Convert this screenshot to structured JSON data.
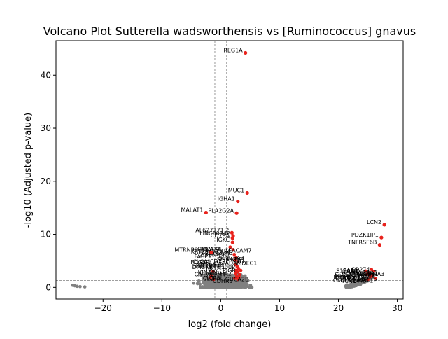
{
  "chart_data": {
    "type": "scatter",
    "title": "Volcano Plot Sutterella wadsworthensis vs [Ruminococcus] gnavus",
    "xlabel": "log2 (fold change)",
    "ylabel": "-log10 (Adjusted p-value)",
    "xlim": [
      -28,
      31
    ],
    "ylim": [
      -2.2,
      46.5
    ],
    "xticks": [
      -20,
      -10,
      0,
      10,
      20,
      30
    ],
    "yticks": [
      0,
      10,
      20,
      30,
      40
    ],
    "grid": false,
    "legend": "none",
    "threshold_lines": {
      "vertical": [
        -1,
        1
      ],
      "horizontal": 1.3
    },
    "colors": {
      "significant": "#e8221c",
      "not_significant": "#808080",
      "threshold": "#808080",
      "axis": "#000000"
    },
    "labeled_points": [
      {
        "label": "REG1A",
        "x": 4.2,
        "y": 44.2
      },
      {
        "label": "MUC1",
        "x": 4.5,
        "y": 17.8
      },
      {
        "label": "IGHA1",
        "x": 2.9,
        "y": 16.2
      },
      {
        "label": "MALAT1",
        "x": -2.5,
        "y": 14.1
      },
      {
        "label": "PLA2G2A",
        "x": 2.7,
        "y": 14.0
      },
      {
        "label": "AL627171.2",
        "x": 1.9,
        "y": 10.3
      },
      {
        "label": "LINC00342",
        "x": 2.1,
        "y": 9.7
      },
      {
        "label": "CD79A",
        "x": 2.0,
        "y": 9.3
      },
      {
        "label": "IGKC",
        "x": 2.0,
        "y": 8.5
      },
      {
        "label": "MTRNR2L12",
        "x": -1.6,
        "y": 6.6
      },
      {
        "label": "LCN2",
        "x": 27.8,
        "y": 11.8
      },
      {
        "label": "PDZK1IP1",
        "x": 27.3,
        "y": 9.4
      },
      {
        "label": "TNFRSF6B",
        "x": 27.0,
        "y": 8.0
      }
    ],
    "significant_points": [
      [
        2.3,
        6.2
      ],
      [
        2.6,
        5.6
      ],
      [
        2.4,
        5.1
      ],
      [
        2.9,
        4.8
      ],
      [
        2.5,
        4.3
      ],
      [
        2.8,
        3.9
      ],
      [
        3.0,
        3.6
      ],
      [
        2.6,
        3.2
      ],
      [
        3.4,
        3.2
      ],
      [
        2.9,
        2.9
      ],
      [
        2.5,
        2.6
      ],
      [
        3.2,
        2.4
      ],
      [
        2.7,
        2.1
      ],
      [
        3.1,
        1.9
      ],
      [
        2.4,
        1.7
      ],
      [
        2.9,
        1.5
      ],
      [
        -1.3,
        3.0
      ],
      [
        -1.6,
        2.2
      ],
      [
        -1.8,
        1.8
      ],
      [
        -1.2,
        1.5
      ],
      [
        1.6,
        7.6
      ],
      [
        2.1,
        7.1
      ],
      [
        25.6,
        3.4
      ],
      [
        26.0,
        3.0
      ],
      [
        25.2,
        2.7
      ],
      [
        25.8,
        2.3
      ],
      [
        25.4,
        2.0
      ],
      [
        26.3,
        1.7
      ],
      [
        25.0,
        1.5
      ],
      [
        24.6,
        3.1
      ],
      [
        24.9,
        2.5
      ]
    ],
    "annotation_labels": [
      "ADAMDEC1",
      "SPINK4",
      "FCGBP",
      "ITLN1",
      "TFF3",
      "CLCA1",
      "ZG16",
      "CEACAM5",
      "OLFM4",
      "LYZ",
      "S100P",
      "DMBT1",
      "PIGR",
      "AGR2",
      "IGHA2",
      "IGHM",
      "JCHAIN",
      "MZB1",
      "PHGR1",
      "KRT20",
      "SELENBP1",
      "FABP1",
      "CA1",
      "CA2",
      "GUCA2A",
      "GUCA2B",
      "AQP8",
      "SLC26A3",
      "CEACAM7",
      "MS4A12",
      "CLDN8",
      "CDHR5",
      "SATB2",
      "LGALS4",
      "CDX2",
      "DUOX2",
      "DUOXA2",
      "NOS2",
      "SAA1",
      "SAA2",
      "CXCL1",
      "CXCL5",
      "MMP3",
      "MMP7",
      "CHI3L1",
      "S100A8",
      "S100A9",
      "IFITM1",
      "SERPINA3",
      "TCN1",
      "REG4",
      "DMBT1P",
      "LBP",
      "PI3",
      "CFB",
      "C3",
      "IDO1",
      "UBD",
      "CD274",
      "SLC6A14"
    ]
  }
}
